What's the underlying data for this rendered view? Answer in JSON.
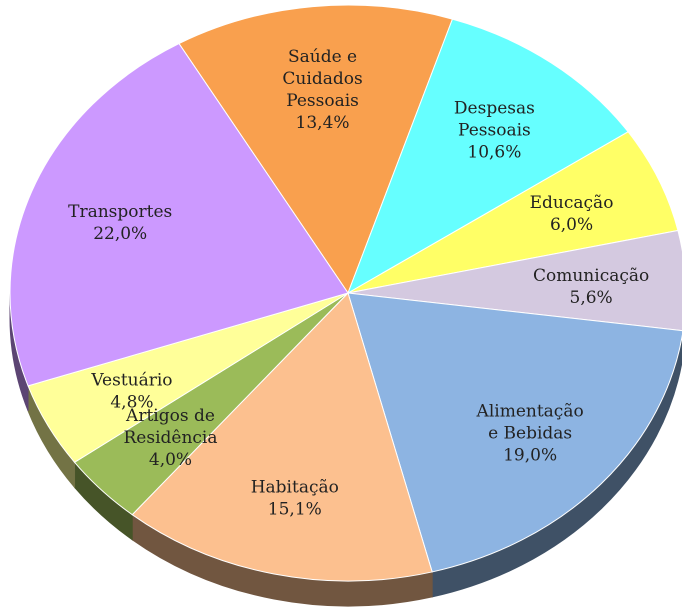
{
  "chart_data": {
    "type": "pie",
    "categories": [
      "Saúde e Cuidados Pessoais",
      "Despesas Pessoais",
      "Educação",
      "Comunicação",
      "Alimentação e Bebidas",
      "Habitação",
      "Artigos de Residência",
      "Vestuário",
      "Transportes"
    ],
    "values": [
      13.4,
      10.6,
      6.0,
      5.6,
      19.0,
      15.1,
      4.0,
      4.8,
      22.0
    ],
    "value_labels": [
      "13,4%",
      "10,6%",
      "6,0%",
      "5,6%",
      "19,0%",
      "15,1%",
      "4,0%",
      "4,8%",
      "22,0%"
    ],
    "colors": [
      "#f9a04e",
      "#66ffff",
      "#ffff66",
      "#d4c9e0",
      "#8db4e2",
      "#fcc08f",
      "#9bbb59",
      "#ffff99",
      "#cc99ff"
    ]
  }
}
